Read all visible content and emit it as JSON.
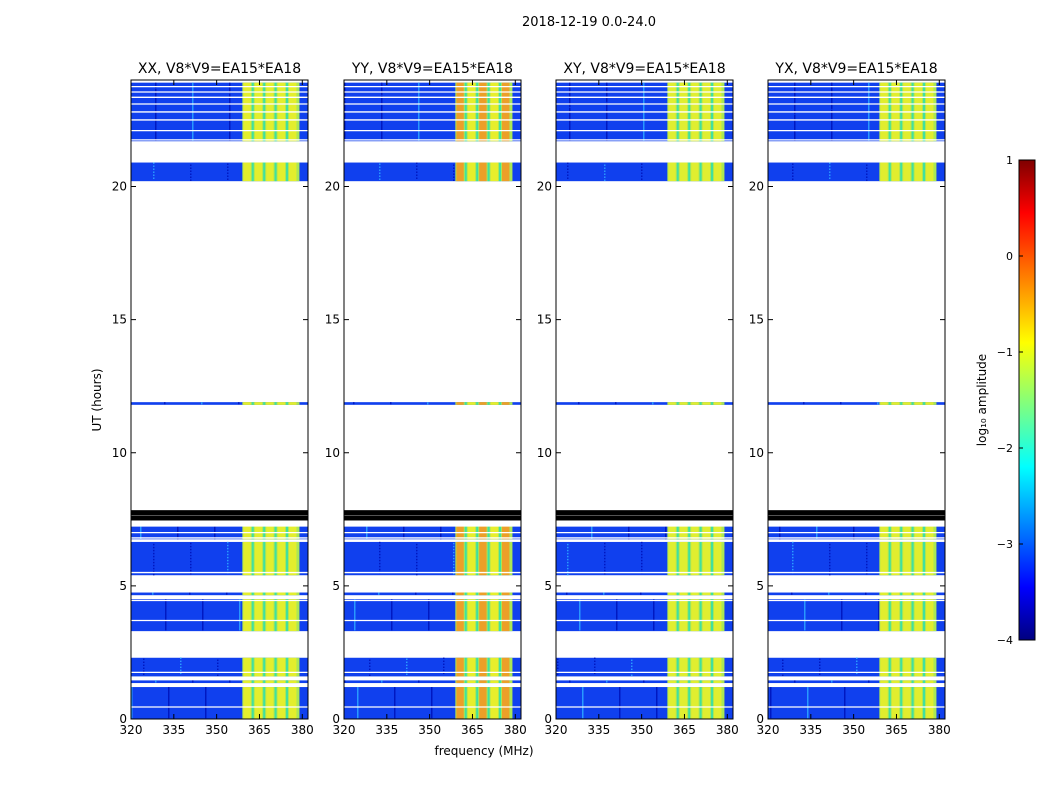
{
  "figure_title": "2018-12-19 0.0-24.0",
  "chart_data": {
    "type": "heatmap",
    "title": "2018-12-19 0.0-24.0",
    "xlabel": "frequency (MHz)",
    "ylabel": "UT (hours)",
    "xlim": [
      320,
      382
    ],
    "ylim": [
      0,
      24
    ],
    "xticks": [
      320,
      335,
      350,
      365,
      380
    ],
    "yticks": [
      0,
      5,
      10,
      15,
      20
    ],
    "panels": [
      {
        "title": "XX, V8*V9=EA15*EA18",
        "polarization": "XX",
        "band_intensity": 0.6
      },
      {
        "title": "YY, V8*V9=EA15*EA18",
        "polarization": "YY",
        "band_intensity": 0.75
      },
      {
        "title": "XY, V8*V9=EA15*EA18",
        "polarization": "XY",
        "band_intensity": 0.45
      },
      {
        "title": "YX, V8*V9=EA15*EA18",
        "polarization": "YX",
        "band_intensity": 0.5
      }
    ],
    "band_mhz": [
      359,
      379
    ],
    "data_segments_ut": [
      [
        0.0,
        1.2
      ],
      [
        1.35,
        1.45
      ],
      [
        1.6,
        2.3
      ],
      [
        3.3,
        4.5
      ],
      [
        4.65,
        4.75
      ],
      [
        5.4,
        6.65
      ],
      [
        6.75,
        7.25
      ],
      [
        11.8,
        11.9
      ],
      [
        20.2,
        20.9
      ],
      [
        21.7,
        23.9
      ]
    ],
    "flagged_lines_ut": [
      0.45,
      1.3,
      1.75,
      3.7,
      4.45,
      5.5,
      6.8,
      7.0,
      7.25,
      7.45,
      7.6,
      7.8,
      21.75,
      22.1,
      22.5,
      22.8,
      23.1,
      23.35,
      23.55,
      23.75
    ],
    "colorbar": {
      "label": "log₁₀ amplitude",
      "range": [
        -4,
        1
      ],
      "ticks": [
        "1",
        "0",
        "−1",
        "−2",
        "−3",
        "−4"
      ],
      "colormap": "jet"
    }
  }
}
